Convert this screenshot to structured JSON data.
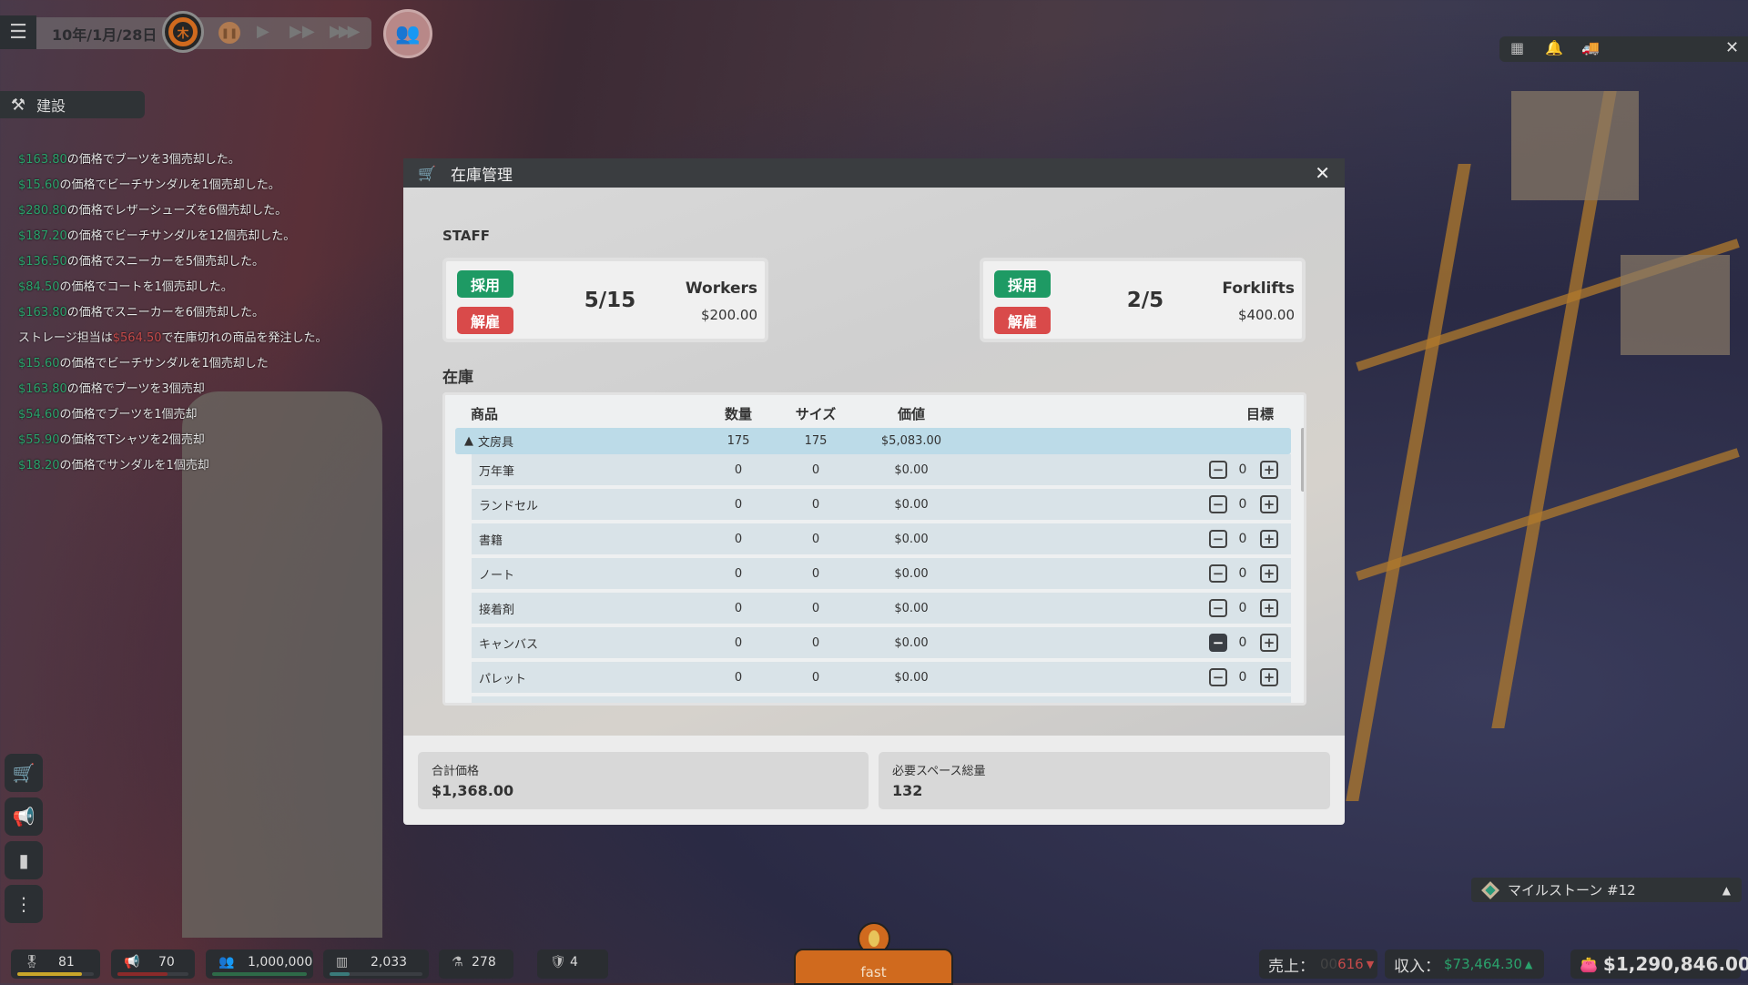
{
  "hud": {
    "date": "10年/1月/28日",
    "weekday": "木",
    "build_label": "建設",
    "icons": [
      "menu-icon",
      "pause-icon",
      "play-icon",
      "fast-forward-icon",
      "fastest-forward-icon",
      "staff-group-icon",
      "hammer-icon"
    ]
  },
  "log": [
    {
      "price": "$163.80",
      "color": "green",
      "text": "の価格でブーツを3個売却した。"
    },
    {
      "price": "$15.60",
      "color": "green",
      "text": "の価格でビーチサンダルを1個売却した。"
    },
    {
      "price": "$280.80",
      "color": "green",
      "text": "の価格でレザーシューズを6個売却した。"
    },
    {
      "price": "$187.20",
      "color": "green",
      "text": "の価格でビーチサンダルを12個売却した。"
    },
    {
      "price": "$136.50",
      "color": "green",
      "text": "の価格でスニーカーを5個売却した。"
    },
    {
      "price": "$84.50",
      "color": "green",
      "text": "の価格でコートを1個売却した。"
    },
    {
      "price": "$163.80",
      "color": "green",
      "text": "の価格でスニーカーを6個売却した。"
    },
    {
      "prefix": "ストレージ担当は",
      "price": "$564.50",
      "color": "red",
      "text": "で在庫切れの商品を発注した。"
    },
    {
      "price": "$15.60",
      "color": "green",
      "text": "の価格でビーチサンダルを1個売却した"
    },
    {
      "price": "$163.80",
      "color": "green",
      "text": "の価格でブーツを3個売却"
    },
    {
      "price": "$54.60",
      "color": "green",
      "text": "の価格でブーツを1個売却"
    },
    {
      "price": "$55.90",
      "color": "green",
      "text": "の価格でTシャツを2個売却"
    },
    {
      "price": "$18.20",
      "color": "green",
      "text": "の価格でサンダルを1個売却"
    }
  ],
  "dialog": {
    "title": "在庫管理",
    "staff_label": "STAFF",
    "staff": [
      {
        "hire": "採用",
        "fire": "解雇",
        "count": "5/15",
        "role": "Workers",
        "cost": "$200.00"
      },
      {
        "hire": "採用",
        "fire": "解雇",
        "count": "2/5",
        "role": "Forklifts",
        "cost": "$400.00"
      }
    ],
    "inventory_label": "在庫",
    "columns": {
      "name": "商品",
      "qty": "数量",
      "size": "サイズ",
      "value": "価値",
      "target": "目標"
    },
    "group": {
      "name": "文房具",
      "qty": "175",
      "size": "175",
      "value": "$5,083.00",
      "expanded": true
    },
    "items": [
      {
        "name": "万年筆",
        "qty": "0",
        "size": "0",
        "value": "$0.00",
        "target": "0"
      },
      {
        "name": "ランドセル",
        "qty": "0",
        "size": "0",
        "value": "$0.00",
        "target": "0"
      },
      {
        "name": "書籍",
        "qty": "0",
        "size": "0",
        "value": "$0.00",
        "target": "0"
      },
      {
        "name": "ノート",
        "qty": "0",
        "size": "0",
        "value": "$0.00",
        "target": "0"
      },
      {
        "name": "接着剤",
        "qty": "0",
        "size": "0",
        "value": "$0.00",
        "target": "0"
      },
      {
        "name": "キャンバス",
        "qty": "0",
        "size": "0",
        "value": "$0.00",
        "target": "0"
      },
      {
        "name": "パレット",
        "qty": "0",
        "size": "0",
        "value": "$0.00",
        "target": "0"
      }
    ],
    "summary": [
      {
        "label": "合計価格",
        "value": "$1,368.00"
      },
      {
        "label": "必要スペース総量",
        "value": "132"
      }
    ]
  },
  "bottom": {
    "stats": [
      {
        "icon": "award-icon",
        "value": "81",
        "bar": 0.85,
        "color": "#c9a62a"
      },
      {
        "icon": "megaphone-icon",
        "value": "70",
        "bar": 0.7,
        "color": "#8a2a2a"
      },
      {
        "icon": "customers-icon",
        "value": "1,000,000",
        "bar": 1.0,
        "color": "#2e6a48"
      },
      {
        "icon": "warehouse-icon",
        "value": "2,033",
        "bar": 0.22,
        "color": "#3a7a7a"
      },
      {
        "icon": "flask-icon",
        "value": "278"
      },
      {
        "icon": "shield-icon",
        "value": "4"
      }
    ],
    "speed_label": "fast",
    "sales_label": "売上：",
    "sales_value": "616",
    "income_label": "収入：",
    "income_value": "$73,464.30",
    "balance": "$1,290,846.00"
  },
  "milestone": "マイルストーン #12",
  "colors": {
    "hire": "#1e9a64",
    "fire": "#d94a4a",
    "accent": "#d06a1e",
    "positive": "#2aa36c",
    "negative": "#c44a4a"
  }
}
